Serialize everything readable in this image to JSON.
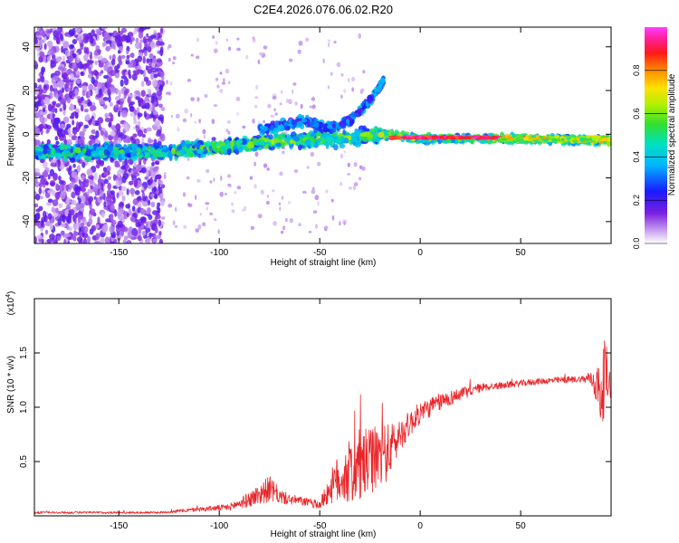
{
  "figure_title": "C2E4.2026.076.06.02.R20",
  "colors": {
    "snr_line": "#e8262a",
    "spectrum_palette": "rainbow"
  },
  "chart_data": [
    {
      "type": "heatmap",
      "name": "spectrogram",
      "xlabel": "Height of straight line (km)",
      "ylabel": "Frequency (Hz)",
      "xlim": [
        -192,
        95
      ],
      "ylim": [
        -50,
        49
      ],
      "xticks": [
        -150,
        -100,
        -50,
        0,
        50
      ],
      "yticks": [
        -40,
        -20,
        0,
        20,
        40
      ],
      "colorbar": {
        "label": "Normalized spectral amplitude",
        "range": [
          0.0,
          1.0
        ],
        "ticks": [
          0.0,
          0.2,
          0.4,
          0.6,
          0.8
        ],
        "tick_labels": [
          "0.0",
          "0.2",
          "0.4",
          "0.6",
          "0.8"
        ]
      },
      "features": [
        {
          "name": "noise-region",
          "x_range": [
            -192,
            -128
          ],
          "freq_range": [
            -50,
            49
          ],
          "amplitude": 0.15
        },
        {
          "name": "main-band",
          "points": [
            [
              -128,
              -8
            ],
            [
              -100,
              -6
            ],
            [
              -70,
              -3
            ],
            [
              -40,
              -2
            ],
            [
              -15,
              0
            ],
            [
              0,
              -2
            ],
            [
              50,
              -2
            ],
            [
              95,
              -3
            ]
          ],
          "amplitude_start": 0.25,
          "amplitude_end": 0.45
        },
        {
          "name": "upper-branch",
          "points": [
            [
              -80,
              2
            ],
            [
              -60,
              6
            ],
            [
              -45,
              3
            ],
            [
              -35,
              6
            ],
            [
              -25,
              15
            ],
            [
              -18,
              25
            ]
          ],
          "amplitude": 0.3
        },
        {
          "name": "strong-line",
          "x_range": [
            -15,
            60
          ],
          "freq": -1.5,
          "amplitude": 1.0
        }
      ]
    },
    {
      "type": "line",
      "name": "snr",
      "xlabel": "Height of straight line (km)",
      "ylabel": "SNR (10 * v/v)",
      "scale_label": "(x10",
      "scale_exponent": "4",
      "xlim": [
        -192,
        95
      ],
      "ylim": [
        0,
        2.0
      ],
      "xticks": [
        -150,
        -100,
        -50,
        0,
        50
      ],
      "yticks": [
        0.5,
        1.0,
        1.5
      ],
      "ytick_labels": [
        "0.5",
        "1.0",
        "1.5"
      ],
      "envelope": {
        "x": [
          -192,
          -130,
          -110,
          -95,
          -85,
          -80,
          -75,
          -70,
          -65,
          -60,
          -55,
          -50,
          -45,
          -40,
          -35,
          -30,
          -25,
          -20,
          -15,
          -10,
          -5,
          0,
          10,
          20,
          30,
          40,
          50,
          60,
          70,
          80,
          85,
          88,
          90,
          92,
          95
        ],
        "mid": [
          0.03,
          0.03,
          0.06,
          0.08,
          0.15,
          0.2,
          0.25,
          0.18,
          0.15,
          0.14,
          0.12,
          0.1,
          0.25,
          0.35,
          0.4,
          0.45,
          0.5,
          0.55,
          0.6,
          0.75,
          0.85,
          0.95,
          1.05,
          1.12,
          1.18,
          1.2,
          1.22,
          1.24,
          1.25,
          1.26,
          1.26,
          1.2,
          1.1,
          1.3,
          1.2
        ],
        "amp": [
          0.01,
          0.01,
          0.02,
          0.03,
          0.07,
          0.1,
          0.12,
          0.07,
          0.05,
          0.04,
          0.04,
          0.04,
          0.14,
          0.25,
          0.3,
          0.35,
          0.3,
          0.3,
          0.25,
          0.15,
          0.12,
          0.1,
          0.08,
          0.06,
          0.04,
          0.03,
          0.03,
          0.03,
          0.03,
          0.03,
          0.06,
          0.2,
          0.3,
          0.35,
          0.1
        ]
      },
      "samples": 1400
    }
  ]
}
